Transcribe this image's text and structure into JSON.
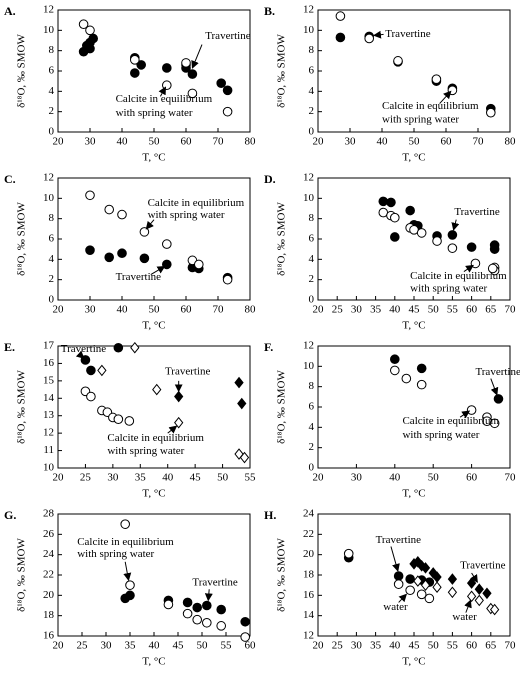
{
  "chart_data": [
    {
      "type": "scatter",
      "panel_label": "A.",
      "xlabel": "T, °C",
      "ylabel": "δ¹⁸O, ‰ SMOW",
      "xlim": [
        20,
        80
      ],
      "ylim": [
        0,
        12
      ],
      "xticks": [
        20,
        30,
        40,
        50,
        60,
        70,
        80
      ],
      "yticks": [
        0,
        2,
        4,
        6,
        8,
        10,
        12
      ],
      "series": [
        {
          "marker": "filled-circle",
          "color": "#000000",
          "x": [
            28,
            29,
            30,
            31,
            30,
            44,
            44,
            46,
            54,
            60,
            60,
            62,
            71,
            73
          ],
          "values": [
            7.9,
            8.5,
            8.2,
            9.2,
            8.8,
            7.3,
            5.8,
            6.6,
            6.3,
            6.6,
            6.3,
            5.7,
            4.8,
            4.1
          ]
        },
        {
          "marker": "open-circle",
          "color": "#000000",
          "x": [
            28,
            30,
            44,
            54,
            60,
            62,
            73
          ],
          "values": [
            10.6,
            10,
            7.1,
            4.6,
            6.8,
            3.8,
            2
          ]
        }
      ],
      "annotations": [
        "Travertine",
        "Calcite in equilibrium",
        "with spring water"
      ]
    },
    {
      "type": "scatter",
      "panel_label": "B.",
      "xlabel": "T, °C",
      "ylabel": "δ¹⁸O, ‰ SMOW",
      "xlim": [
        20,
        80
      ],
      "ylim": [
        0,
        12
      ],
      "xticks": [
        20,
        30,
        40,
        50,
        60,
        70,
        80
      ],
      "yticks": [
        0,
        2,
        4,
        6,
        8,
        10,
        12
      ],
      "series": [
        {
          "marker": "filled-circle",
          "color": "#000000",
          "x": [
            27,
            36,
            45,
            57,
            62,
            74
          ],
          "values": [
            9.3,
            9.4,
            6.9,
            5,
            4.3,
            2.3
          ]
        },
        {
          "marker": "open-circle",
          "color": "#000000",
          "x": [
            27,
            36,
            45,
            57,
            62,
            74
          ],
          "values": [
            11.4,
            9.2,
            7,
            5.2,
            4.1,
            1.9
          ]
        }
      ],
      "annotations": [
        "Travertine",
        "Calcite in equilibrium",
        "with spring water"
      ]
    },
    {
      "type": "scatter",
      "panel_label": "C.",
      "xlabel": "T, °C",
      "ylabel": "δ¹⁸O, ‰ SMOW",
      "xlim": [
        20,
        80
      ],
      "ylim": [
        0,
        12
      ],
      "xticks": [
        20,
        30,
        40,
        50,
        60,
        70,
        80
      ],
      "yticks": [
        0,
        2,
        4,
        6,
        8,
        10,
        12
      ],
      "series": [
        {
          "marker": "filled-circle",
          "color": "#000000",
          "x": [
            30,
            36,
            40,
            47,
            54,
            62,
            64,
            73
          ],
          "values": [
            4.9,
            4.2,
            4.6,
            4.1,
            3.5,
            3.2,
            3.1,
            2.2
          ]
        },
        {
          "marker": "open-circle",
          "color": "#000000",
          "x": [
            30,
            36,
            40,
            47,
            54,
            62,
            64,
            73
          ],
          "values": [
            10.3,
            8.9,
            8.4,
            6.7,
            5.5,
            3.9,
            3.5,
            2
          ]
        }
      ],
      "annotations": [
        "Calcite in equilibrium",
        "with spring water",
        "Travertine"
      ]
    },
    {
      "type": "scatter",
      "panel_label": "D.",
      "xlabel": "T, °C",
      "ylabel": "δ¹⁸O, ‰ SMOW",
      "xlim": [
        20,
        70
      ],
      "ylim": [
        0,
        12
      ],
      "xticks": [
        20,
        25,
        30,
        35,
        40,
        45,
        50,
        55,
        60,
        65,
        70
      ],
      "yticks": [
        0,
        2,
        4,
        6,
        8,
        10,
        12
      ],
      "series": [
        {
          "marker": "filled-circle",
          "color": "#000000",
          "x": [
            37,
            39,
            40,
            44,
            45,
            46,
            51,
            55,
            60,
            66,
            66
          ],
          "values": [
            9.7,
            9.6,
            6.2,
            8.8,
            7.4,
            7.3,
            6.3,
            6.4,
            5.2,
            5.4,
            5
          ]
        },
        {
          "marker": "open-circle",
          "color": "#000000",
          "x": [
            37,
            39,
            40,
            44,
            45,
            47,
            51,
            55,
            61,
            66,
            66,
            65.5
          ],
          "values": [
            8.6,
            8.3,
            8.1,
            7.1,
            6.9,
            6.6,
            5.8,
            5.1,
            3.6,
            3.2,
            2.9,
            3.1
          ]
        }
      ],
      "annotations": [
        "Travertine",
        "Calcite in equilibrium",
        "with spring water"
      ]
    },
    {
      "type": "scatter",
      "panel_label": "E.",
      "xlabel": "T, °C",
      "ylabel": "δ¹⁸O, ‰ SMOW",
      "xlim": [
        20,
        55
      ],
      "ylim": [
        10,
        17
      ],
      "xticks": [
        20,
        25,
        30,
        35,
        40,
        45,
        50,
        55
      ],
      "yticks": [
        10,
        11,
        12,
        13,
        14,
        15,
        16,
        17
      ],
      "series": [
        {
          "marker": "filled-circle",
          "color": "#000000",
          "x": [
            25,
            26,
            31
          ],
          "values": [
            16.2,
            15.6,
            16.9
          ]
        },
        {
          "marker": "open-circle",
          "color": "#000000",
          "x": [
            25,
            26,
            28,
            29,
            30,
            31,
            33
          ],
          "values": [
            14.4,
            14.1,
            13.3,
            13.2,
            12.9,
            12.8,
            12.7
          ]
        },
        {
          "marker": "filled-diamond",
          "color": "#000000",
          "x": [
            42,
            53,
            53.5
          ],
          "values": [
            14.1,
            14.9,
            13.7
          ]
        },
        {
          "marker": "open-diamond",
          "color": "#000000",
          "x": [
            28,
            34,
            38,
            42,
            53,
            54
          ],
          "values": [
            15.6,
            16.9,
            14.5,
            12.6,
            10.8,
            10.6
          ]
        }
      ],
      "annotations": [
        "Travertine",
        "Travertine",
        "Calcite in equilibrium",
        "with spring water"
      ]
    },
    {
      "type": "scatter",
      "panel_label": "F.",
      "xlabel": "T, °C",
      "ylabel": "δ¹⁸O, ‰ SMOW",
      "xlim": [
        20,
        70
      ],
      "ylim": [
        0,
        12
      ],
      "xticks": [
        20,
        30,
        40,
        50,
        60,
        70
      ],
      "yticks": [
        0,
        2,
        4,
        6,
        8,
        10,
        12
      ],
      "series": [
        {
          "marker": "filled-circle",
          "color": "#000000",
          "x": [
            40,
            47,
            67
          ],
          "values": [
            10.7,
            9.8,
            6.8
          ]
        },
        {
          "marker": "open-circle",
          "color": "#000000",
          "x": [
            40,
            43,
            47,
            60,
            64,
            64,
            66
          ],
          "values": [
            9.6,
            8.8,
            8.2,
            5.7,
            5,
            4.6,
            4.4
          ]
        }
      ],
      "annotations": [
        "Travertine",
        "Calcite in equilibrium",
        "with spring water"
      ]
    },
    {
      "type": "scatter",
      "panel_label": "G.",
      "xlabel": "T, °C",
      "ylabel": "δ¹⁸O, ‰ SMOW",
      "xlim": [
        20,
        60
      ],
      "ylim": [
        16,
        28
      ],
      "xticks": [
        20,
        25,
        30,
        35,
        40,
        45,
        50,
        55,
        60
      ],
      "yticks": [
        16,
        18,
        20,
        22,
        24,
        26,
        28
      ],
      "series": [
        {
          "marker": "filled-circle",
          "color": "#000000",
          "x": [
            34,
            35,
            43,
            47,
            49,
            51,
            54,
            59
          ],
          "values": [
            19.7,
            20,
            19.5,
            19.3,
            18.8,
            19,
            18.6,
            17.4
          ]
        },
        {
          "marker": "open-circle",
          "color": "#000000",
          "x": [
            34,
            35,
            43,
            47,
            49,
            51,
            54,
            59
          ],
          "values": [
            27,
            21,
            19.1,
            18.2,
            17.6,
            17.3,
            17,
            15.9
          ]
        }
      ],
      "annotations": [
        "Calcite in equilibrium",
        "with spring water",
        "Travertine"
      ]
    },
    {
      "type": "scatter",
      "panel_label": "H.",
      "xlabel": "T, °C",
      "ylabel": "δ¹⁸O, ‰ SMOW",
      "xlim": [
        20,
        70
      ],
      "ylim": [
        12,
        24
      ],
      "xticks": [
        20,
        25,
        30,
        35,
        40,
        45,
        50,
        55,
        60,
        65,
        70
      ],
      "yticks": [
        12,
        14,
        16,
        18,
        20,
        22,
        24
      ],
      "series": [
        {
          "marker": "filled-circle",
          "color": "#000000",
          "x": [
            28,
            41,
            44,
            47,
            49
          ],
          "values": [
            19.7,
            17.9,
            17.6,
            17.5,
            17.3
          ]
        },
        {
          "marker": "open-circle",
          "color": "#000000",
          "x": [
            28,
            41,
            44,
            47,
            49
          ],
          "values": [
            20.1,
            17.1,
            16.5,
            16.1,
            15.7
          ]
        },
        {
          "marker": "filled-diamond",
          "color": "#000000",
          "x": [
            45,
            46,
            47,
            48,
            50,
            51,
            55,
            60,
            62,
            64
          ],
          "values": [
            19.1,
            19.3,
            18.9,
            18.7,
            18.2,
            17.8,
            17.6,
            17.2,
            16.6,
            16.2
          ]
        },
        {
          "marker": "open-diamond",
          "color": "#000000",
          "x": [
            46,
            48,
            51,
            55,
            60,
            62,
            65,
            66
          ],
          "values": [
            17.4,
            17,
            16.8,
            16.3,
            15.9,
            15.5,
            14.7,
            14.6
          ]
        }
      ],
      "annotations": [
        "Travertine",
        "Travertine",
        "water",
        "water"
      ]
    }
  ]
}
